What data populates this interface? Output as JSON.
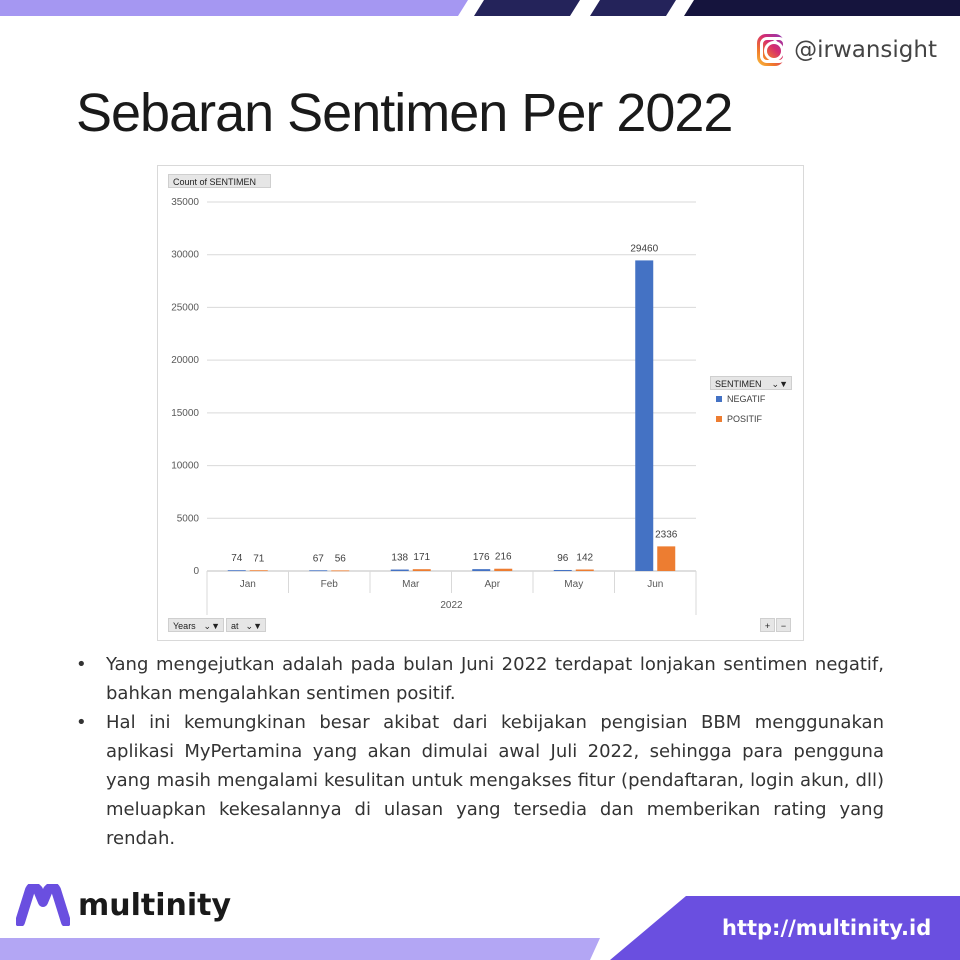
{
  "slide": {
    "title": "Sebaran Sentimen Per 2022",
    "instagram_handle": "@irwansight",
    "logo_text": "multinity",
    "url": "http://multinity.id",
    "bullets": [
      "Yang mengejutkan adalah pada bulan Juni 2022 terdapat lonjakan sentimen negatif, bahkan mengalahkan sentimen positif.",
      "Hal ini kemungkinan besar akibat dari kebijakan pengisian BBM menggunakan aplikasi MyPertamina yang akan dimulai awal Juli 2022, sehingga para pengguna yang masih mengalami kesulitan untuk mengakses fitur (pendaftaran, login akun, dll) meluapkan kekesalannya di ulasan yang tersedia dan memberikan rating yang rendah."
    ]
  },
  "pivot": {
    "value_field": "Count of SENTIMEN",
    "legend_field": "SENTIMEN",
    "axis_field_1": "Years",
    "axis_field_2": "at",
    "zoom_in": "+",
    "zoom_out": "−"
  },
  "colors": {
    "negatif": "#4472c4",
    "positif": "#ed7d31",
    "top_bar_light": "#9a8cf0",
    "top_bar_dark": "#1c1b4e",
    "bottom_band": "#6a4fe0"
  },
  "chart_data": {
    "type": "bar",
    "categories": [
      "Jan",
      "Feb",
      "Mar",
      "Apr",
      "May",
      "Jun"
    ],
    "group_label": "2022",
    "series": [
      {
        "name": "NEGATIF",
        "values": [
          74,
          67,
          138,
          176,
          96,
          29460
        ]
      },
      {
        "name": "POSITIF",
        "values": [
          71,
          56,
          171,
          216,
          142,
          2336
        ]
      }
    ],
    "ylim": [
      0,
      35000
    ],
    "yticks": [
      0,
      5000,
      10000,
      15000,
      20000,
      25000,
      30000,
      35000
    ],
    "grid": true,
    "legend_position": "right",
    "data_labels": true
  }
}
